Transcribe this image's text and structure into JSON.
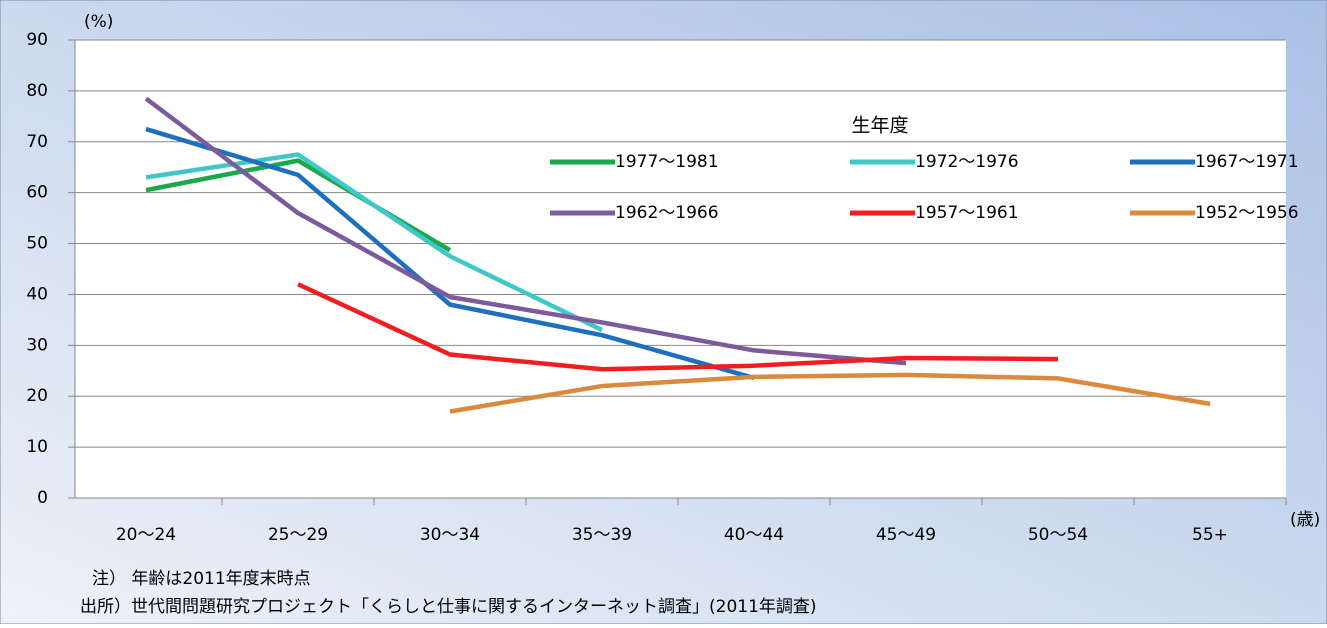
{
  "chart_data": {
    "type": "line",
    "y_axis_label": "(%)",
    "x_axis_label": "(歳)",
    "legend_title": "生年度",
    "categories": [
      "20〜24",
      "25〜29",
      "30〜34",
      "35〜39",
      "40〜44",
      "45〜49",
      "50〜54",
      "55+"
    ],
    "series": [
      {
        "name": "1977〜1981",
        "color": "#1aa84a",
        "values": [
          60.5,
          66.3,
          48.7,
          null,
          null,
          null,
          null,
          null
        ]
      },
      {
        "name": "1972〜1976",
        "color": "#40c8c8",
        "values": [
          63,
          67.5,
          47.5,
          33,
          null,
          null,
          null,
          null
        ]
      },
      {
        "name": "1967〜1971",
        "color": "#1f6fbf",
        "values": [
          72.5,
          63.5,
          38,
          32,
          23.6,
          null,
          null,
          null
        ]
      },
      {
        "name": "1962〜1966",
        "color": "#7b5b9b",
        "values": [
          78.5,
          56,
          39.5,
          34.5,
          29,
          26.5,
          null,
          null
        ]
      },
      {
        "name": "1957〜1961",
        "color": "#f01e1e",
        "values": [
          null,
          42,
          28.2,
          25.3,
          26,
          27.5,
          27.3,
          null
        ]
      },
      {
        "name": "1952〜1956",
        "color": "#d98a3c",
        "values": [
          null,
          null,
          17,
          22,
          23.8,
          24.2,
          23.5,
          18.5
        ]
      }
    ],
    "ylim": [
      0,
      90
    ],
    "yticks": [
      0,
      10,
      20,
      30,
      40,
      50,
      60,
      70,
      80,
      90
    ],
    "grid": true,
    "notes": [
      "注） 年齢は2011年度末時点",
      "出所）世代間問題研究プロジェクト「くらしと仕事に関するインターネット調査」(2011年調査)"
    ]
  }
}
